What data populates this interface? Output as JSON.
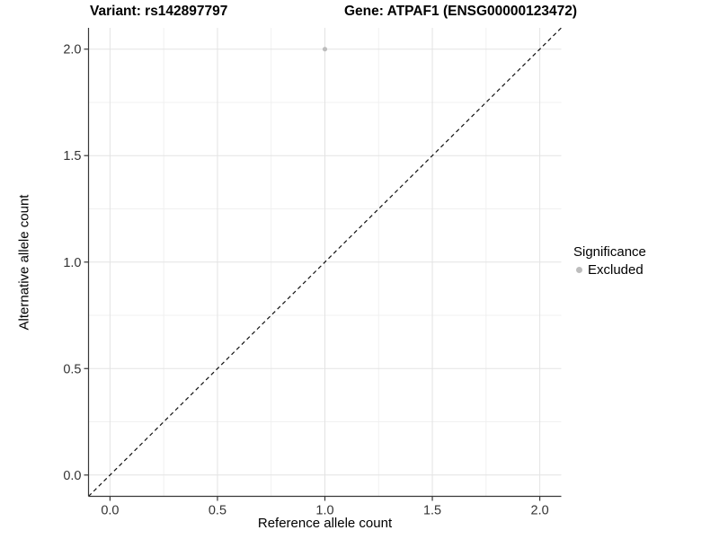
{
  "header": {
    "title_left": "Variant: rs142897797",
    "title_right": "Gene: ATPAF1 (ENSG00000123472)"
  },
  "legend": {
    "title": "Significance",
    "items": [
      {
        "label": "Excluded",
        "color": "#bdbdbd"
      }
    ]
  },
  "chart_data": {
    "type": "scatter",
    "title": "Variant: rs142897797 — Gene: ATPAF1 (ENSG00000123472)",
    "xlabel": "Reference allele count",
    "ylabel": "Alternative allele count",
    "xlim": [
      -0.1,
      2.1
    ],
    "ylim": [
      -0.1,
      2.1
    ],
    "xticks": [
      0.0,
      0.5,
      1.0,
      1.5,
      2.0
    ],
    "yticks": [
      0.0,
      0.5,
      1.0,
      1.5,
      2.0
    ],
    "minor_ticks": [
      0.25,
      0.75,
      1.25,
      1.75
    ],
    "tick_label_format": "one_decimal",
    "grid": true,
    "legend_position": "right",
    "series": [
      {
        "name": "Excluded",
        "color": "#bdbdbd",
        "marker_radius": 2.6,
        "points": [
          [
            1.0,
            2.0
          ]
        ]
      }
    ],
    "reference_line": {
      "kind": "identity",
      "slope": 1,
      "intercept": 0,
      "style": "dashed",
      "color": "#111111"
    }
  },
  "style": {
    "grid_major": "#e3e3e3",
    "grid_minor": "#f0f0f0",
    "axis_line": "#383838",
    "tick_label_color": "#333333"
  }
}
